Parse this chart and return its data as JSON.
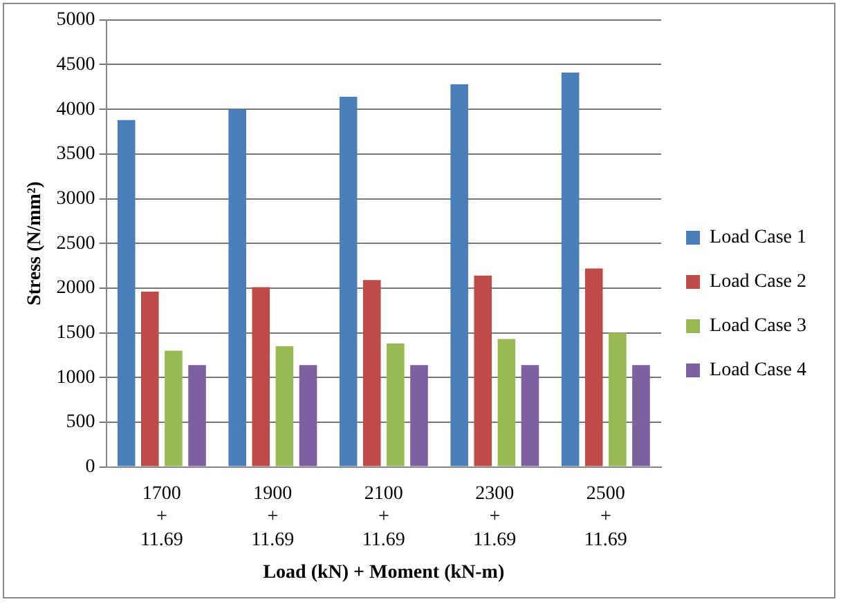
{
  "chart_data": {
    "type": "bar",
    "xlabel": "Load (kN) + Moment (kN-m)",
    "ylabel": "Stress (N/mm²)",
    "categories": [
      "1700\n+\n11.69",
      "1900\n+\n11.69",
      "2100\n+\n11.69",
      "2300\n+\n11.69",
      "2500\n+\n11.69"
    ],
    "series": [
      {
        "name": "Load Case 1",
        "color": "#4a7ebb",
        "values": [
          3880,
          4000,
          4140,
          4280,
          4410
        ]
      },
      {
        "name": "Load Case 2",
        "color": "#be4b48",
        "values": [
          1960,
          2010,
          2090,
          2140,
          2220
        ]
      },
      {
        "name": "Load Case 3",
        "color": "#98b954",
        "values": [
          1300,
          1350,
          1380,
          1430,
          1500
        ]
      },
      {
        "name": "Load Case 4",
        "color": "#7d60a0",
        "values": [
          1140,
          1140,
          1140,
          1140,
          1140
        ]
      }
    ],
    "ylim": [
      0,
      5000
    ],
    "yticks": [
      0,
      500,
      1000,
      1500,
      2000,
      2500,
      3000,
      3500,
      4000,
      4500,
      5000
    ],
    "grid": "y",
    "legend": "right"
  }
}
